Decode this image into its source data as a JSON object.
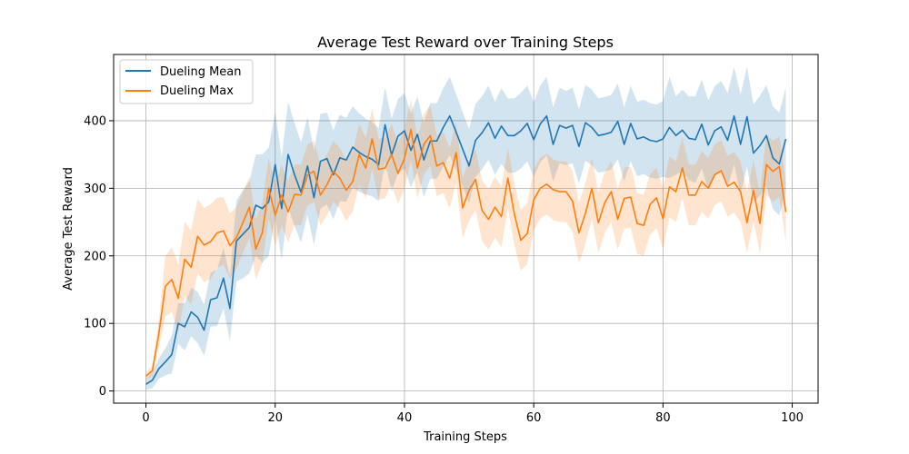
{
  "chart_data": {
    "type": "line",
    "title": "Average Test Reward over Training Steps",
    "xlabel": "Training Steps",
    "ylabel": "Average Test Reward",
    "xlim": [
      -5,
      104
    ],
    "ylim": [
      -18,
      498
    ],
    "xticks": [
      0,
      20,
      40,
      60,
      80,
      100
    ],
    "yticks": [
      0,
      100,
      200,
      300,
      400
    ],
    "grid": true,
    "legend_position": "top-left",
    "series": [
      {
        "name": "Dueling Mean",
        "color": "#1f77b4",
        "values": [
          10,
          16,
          33,
          43,
          54,
          100,
          95,
          117,
          109,
          90,
          135,
          138,
          167,
          122,
          222,
          232,
          242,
          275,
          270,
          280,
          335,
          270,
          350,
          320,
          294,
          333,
          286,
          340,
          344,
          320,
          345,
          342,
          361,
          353,
          347,
          343,
          335,
          394,
          349,
          377,
          385,
          356,
          380,
          342,
          370,
          370,
          390,
          407,
          383,
          358,
          333,
          371,
          382,
          397,
          374,
          392,
          378,
          378,
          385,
          396,
          372,
          395,
          407,
          365,
          393,
          389,
          393,
          362,
          397,
          390,
          378,
          380,
          383,
          399,
          365,
          396,
          373,
          376,
          371,
          369,
          373,
          390,
          378,
          386,
          374,
          372,
          395,
          364,
          385,
          391,
          371,
          407,
          365,
          406,
          352,
          363,
          378,
          345,
          336,
          373
        ],
        "band_halfwidth": [
          8,
          12,
          15,
          20,
          28,
          30,
          35,
          36,
          38,
          38,
          40,
          42,
          45,
          48,
          60,
          65,
          68,
          75,
          80,
          80,
          78,
          76,
          78,
          76,
          74,
          72,
          70,
          70,
          68,
          66,
          64,
          62,
          60,
          58,
          56,
          55,
          54,
          55,
          54,
          55,
          56,
          55,
          56,
          55,
          56,
          56,
          58,
          58,
          56,
          55,
          55,
          54,
          54,
          55,
          54,
          56,
          55,
          55,
          56,
          56,
          55,
          57,
          58,
          55,
          56,
          55,
          56,
          55,
          56,
          56,
          55,
          55,
          55,
          56,
          55,
          56,
          55,
          55,
          55,
          55,
          56,
          75,
          58,
          60,
          62,
          64,
          66,
          66,
          66,
          68,
          70,
          72,
          74,
          74,
          72,
          74,
          75,
          76,
          76,
          76
        ]
      },
      {
        "name": "Dueling Max",
        "color": "#ff7f0e",
        "values": [
          22,
          30,
          85,
          155,
          165,
          137,
          195,
          183,
          229,
          216,
          221,
          234,
          237,
          215,
          227,
          249,
          272,
          210,
          234,
          300,
          260,
          290,
          265,
          291,
          290,
          320,
          325,
          290,
          305,
          325,
          315,
          297,
          310,
          350,
          330,
          373,
          328,
          330,
          350,
          322,
          344,
          387,
          330,
          365,
          378,
          333,
          338,
          315,
          353,
          271,
          297,
          313,
          267,
          254,
          272,
          258,
          315,
          262,
          223,
          233,
          283,
          300,
          306,
          298,
          295,
          295,
          281,
          234,
          263,
          300,
          249,
          279,
          295,
          254,
          285,
          287,
          248,
          245,
          276,
          286,
          255,
          302,
          295,
          330,
          290,
          290,
          310,
          300,
          320,
          326,
          303,
          309,
          295,
          249,
          297,
          248,
          335,
          325,
          332,
          265
        ],
        "band_halfwidth": [
          5,
          8,
          20,
          45,
          48,
          50,
          55,
          55,
          55,
          55,
          55,
          52,
          50,
          48,
          46,
          45,
          45,
          45,
          45,
          45,
          45,
          45,
          45,
          45,
          45,
          45,
          45,
          45,
          45,
          45,
          45,
          45,
          45,
          45,
          45,
          45,
          45,
          45,
          45,
          45,
          45,
          45,
          45,
          45,
          45,
          45,
          45,
          45,
          45,
          45,
          45,
          45,
          45,
          45,
          45,
          45,
          45,
          45,
          45,
          45,
          45,
          45,
          45,
          45,
          45,
          45,
          45,
          45,
          45,
          45,
          45,
          45,
          45,
          45,
          45,
          45,
          45,
          45,
          45,
          45,
          45,
          45,
          45,
          45,
          45,
          45,
          45,
          45,
          45,
          45,
          45,
          45,
          45,
          45,
          45,
          45,
          45,
          45,
          45,
          45
        ]
      }
    ]
  }
}
